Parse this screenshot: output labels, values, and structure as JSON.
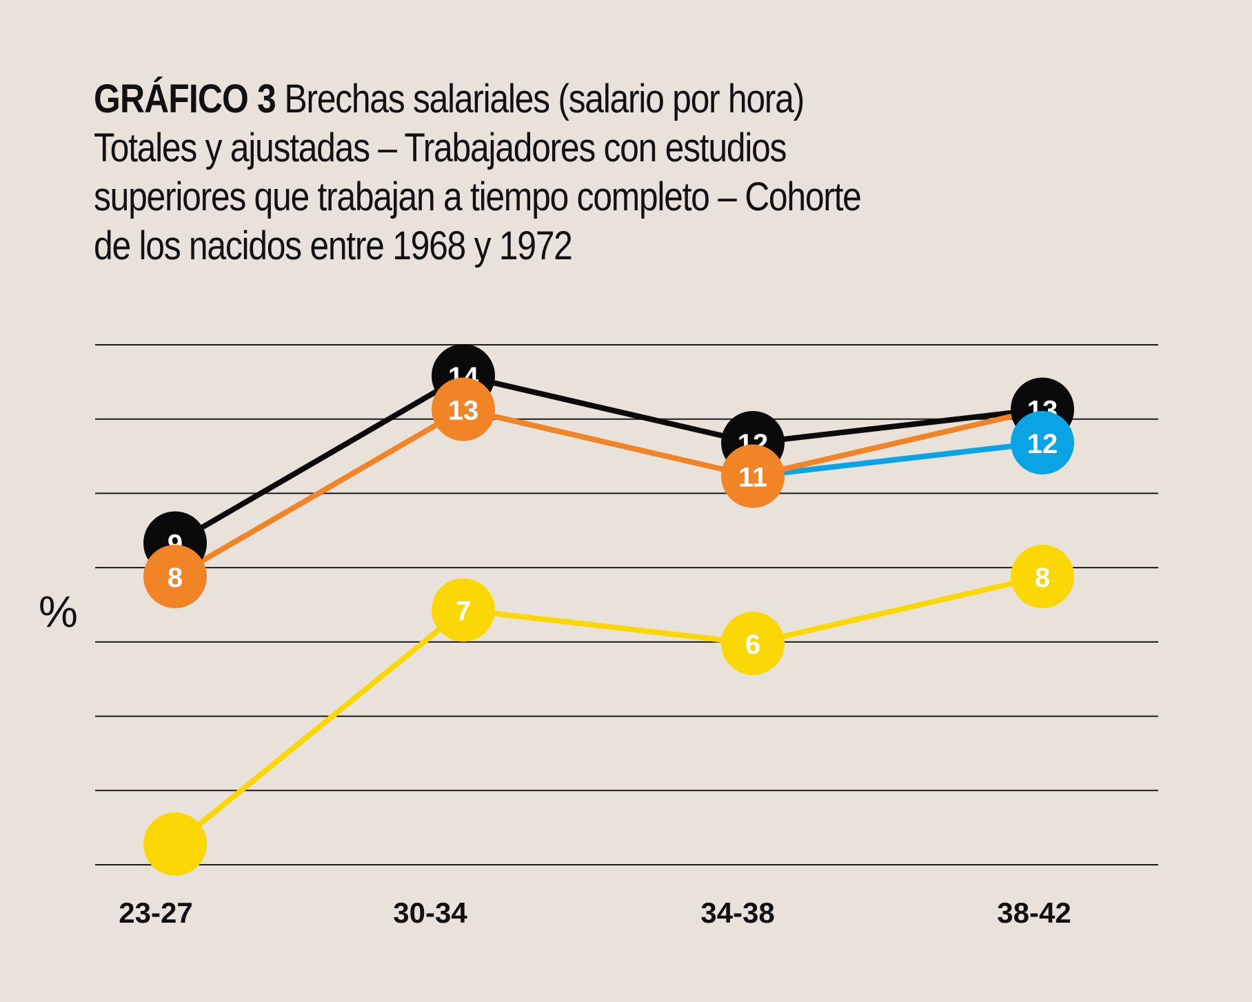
{
  "title": {
    "label": "GRÁFICO 3",
    "lines": [
      "Brechas salariales (salario por hora)",
      "Totales y ajustadas – Trabajadores con estudios",
      "superiores que trabajan a tiempo completo – Cohorte",
      "de los nacidos entre 1968 y 1972"
    ]
  },
  "colors": {
    "background": "#e8e2db",
    "gridline": "#1a1a1a",
    "label_text": "#ffffff"
  },
  "chart_data": {
    "type": "line",
    "title": "GRÁFICO 3 Brechas salariales (salario por hora) Totales y ajustadas – Trabajadores con estudios superiores que trabajan a tiempo completo – Cohorte de los nacidos entre 1968 y 1972",
    "xlabel": "",
    "ylabel": "%",
    "categories": [
      "23-27",
      "30-34",
      "34-38",
      "38-42"
    ],
    "ylim": [
      0,
      15.5
    ],
    "grid": true,
    "legend": "none",
    "series": [
      {
        "name": "black",
        "color": "#0a0a0a",
        "values": [
          9,
          14,
          12,
          13
        ],
        "labels": [
          "9",
          "14",
          "12",
          "13"
        ]
      },
      {
        "name": "orange",
        "color": "#f08426",
        "values": [
          8,
          13,
          11,
          13
        ],
        "labels": [
          "8",
          "13",
          "11",
          ""
        ]
      },
      {
        "name": "blue",
        "color": "#0aa4e4",
        "values": [
          null,
          null,
          11,
          12
        ],
        "labels": [
          "",
          "",
          "",
          "12"
        ]
      },
      {
        "name": "yellow",
        "color": "#fbd805",
        "values": [
          0,
          7,
          6,
          8
        ],
        "labels": [
          "",
          "7",
          "6",
          "8"
        ]
      }
    ],
    "gridline_count": 8
  }
}
